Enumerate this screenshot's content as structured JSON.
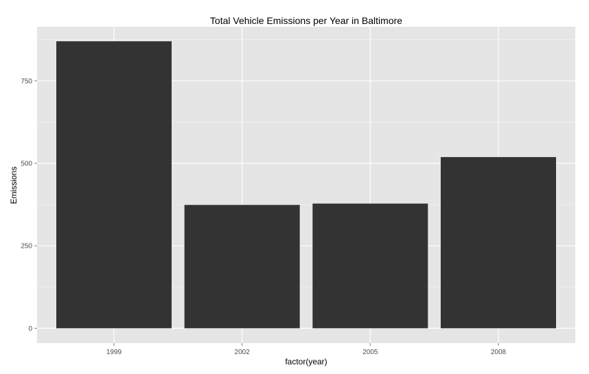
{
  "colors": {
    "panel_background": "#e5e5e5",
    "grid_major": "#ffffff",
    "grid_minor": "#f2f2f2",
    "bar_fill": "#333333",
    "tick_text": "#4d4d4d"
  },
  "chart_data": {
    "type": "bar",
    "title": "Total Vehicle Emissions per Year in Baltimore",
    "xlabel": "factor(year)",
    "ylabel": "Emissions",
    "categories": [
      "1999",
      "2002",
      "2005",
      "2008"
    ],
    "values": [
      870,
      374,
      378,
      519
    ],
    "ylim": [
      -45,
      914
    ],
    "yticks": [
      0,
      250,
      500,
      750
    ],
    "ytick_labels": [
      "0",
      "250",
      "500",
      "750"
    ],
    "grid": true,
    "legend": "none"
  }
}
